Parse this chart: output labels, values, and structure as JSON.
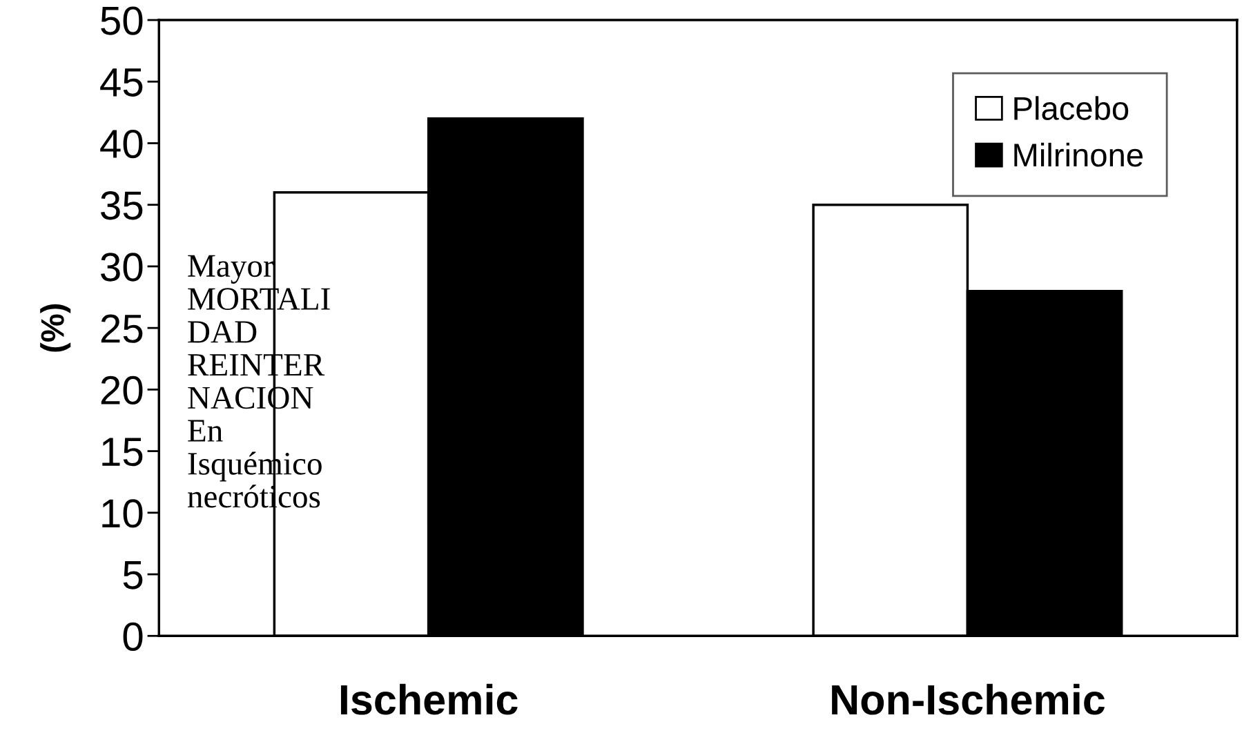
{
  "chart_data": {
    "type": "bar",
    "ylabel": "(%)",
    "categories": [
      "Ischemic",
      "Non-Ischemic"
    ],
    "series": [
      {
        "name": "Placebo",
        "color": "#ffffff",
        "values": [
          36,
          35
        ]
      },
      {
        "name": "Milrinone",
        "color": "#000000",
        "values": [
          42,
          28
        ]
      }
    ],
    "ylim": [
      0,
      50
    ],
    "yticks": [
      0,
      5,
      10,
      15,
      20,
      25,
      30,
      35,
      40,
      45,
      50
    ],
    "legend": "top right",
    "grid": false,
    "annotations": [
      "Mayor\nMORTALI\nDAD\nREINTER\nNACION\nEn\nIsquémico\nnecróticos"
    ]
  }
}
